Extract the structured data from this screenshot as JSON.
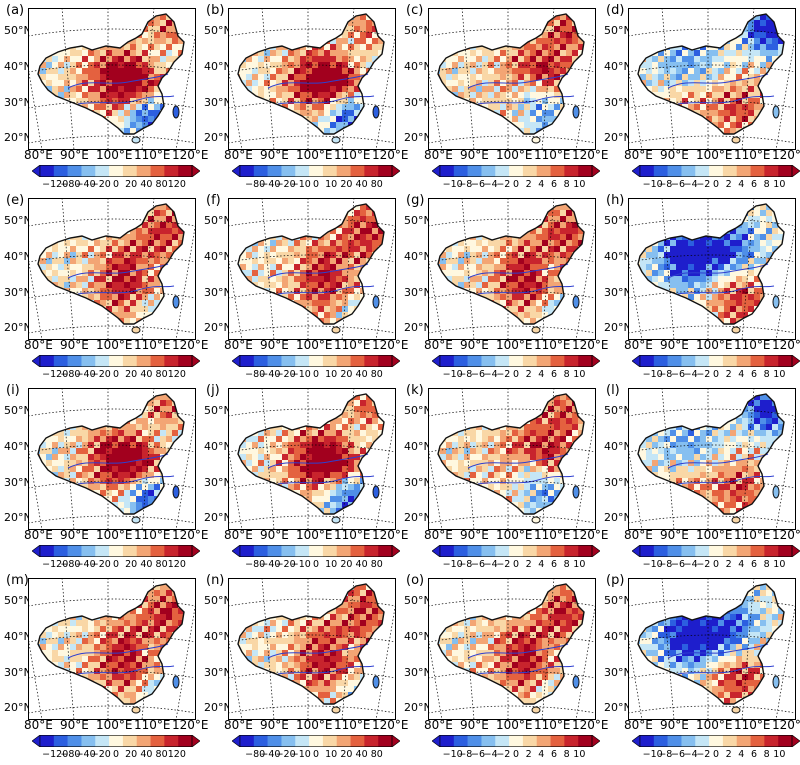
{
  "panels": [
    {
      "label": "(a)",
      "scale": 0,
      "pattern": 0
    },
    {
      "label": "(b)",
      "scale": 1,
      "pattern": 0
    },
    {
      "label": "(c)",
      "scale": 2,
      "pattern": 1
    },
    {
      "label": "(d)",
      "scale": 2,
      "pattern": 2
    },
    {
      "label": "(e)",
      "scale": 0,
      "pattern": 3
    },
    {
      "label": "(f)",
      "scale": 1,
      "pattern": 3
    },
    {
      "label": "(g)",
      "scale": 2,
      "pattern": 3
    },
    {
      "label": "(h)",
      "scale": 2,
      "pattern": 4
    },
    {
      "label": "(i)",
      "scale": 0,
      "pattern": 0
    },
    {
      "label": "(j)",
      "scale": 1,
      "pattern": 0
    },
    {
      "label": "(k)",
      "scale": 2,
      "pattern": 1
    },
    {
      "label": "(l)",
      "scale": 2,
      "pattern": 2
    },
    {
      "label": "(m)",
      "scale": 0,
      "pattern": 3
    },
    {
      "label": "(n)",
      "scale": 1,
      "pattern": 3
    },
    {
      "label": "(o)",
      "scale": 2,
      "pattern": 3
    },
    {
      "label": "(p)",
      "scale": 2,
      "pattern": 4
    }
  ],
  "lat_labels": [
    "50°N",
    "40°N",
    "30°N",
    "20°N"
  ],
  "lon_labels": [
    "80°E",
    "90°E",
    "100°E",
    "110°E",
    "120°E"
  ],
  "colorbars": [
    {
      "ticks": [
        "−120",
        "−80",
        "−40",
        "−20",
        "0",
        "20",
        "40",
        "80",
        "120"
      ]
    },
    {
      "ticks": [
        "−80",
        "−40",
        "−20",
        "−10",
        "0",
        "10",
        "20",
        "40",
        "80"
      ]
    },
    {
      "ticks": [
        "−10",
        "−8",
        "−6",
        "−4",
        "−2",
        "0",
        "2",
        "4",
        "6",
        "8",
        "10"
      ]
    }
  ],
  "colors": {
    "ramp": [
      "#1e1ecc",
      "#2c5fe0",
      "#4f8fe8",
      "#86bff0",
      "#c5e6f6",
      "#fff8e0",
      "#f9d7a6",
      "#f3a574",
      "#e4613f",
      "#c8242d",
      "#a2001e"
    ]
  }
}
